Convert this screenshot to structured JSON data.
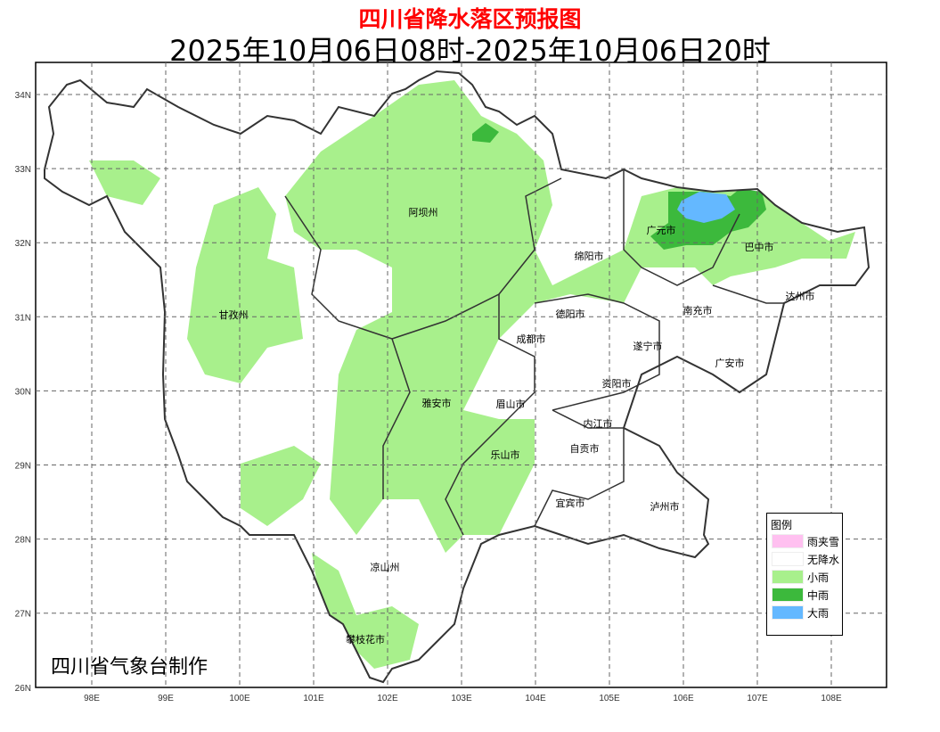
{
  "title": "四川省降水落区预报图",
  "subtitle": "2025年10月06日08时-2025年10月06日20时",
  "credit": "四川省气象台制作",
  "axes": {
    "x_ticks": [
      "98E",
      "99E",
      "100E",
      "101E",
      "102E",
      "103E",
      "104E",
      "105E",
      "106E",
      "107E",
      "108E"
    ],
    "y_ticks": [
      "34N",
      "33N",
      "32N",
      "31N",
      "30N",
      "29N",
      "28N",
      "27N",
      "26N"
    ]
  },
  "regions": [
    "阿坝州",
    "甘孜州",
    "绵阳市",
    "广元市",
    "巴中市",
    "达州市",
    "南充市",
    "德阳市",
    "成都市",
    "遂宁市",
    "广安市",
    "资阳市",
    "雅安市",
    "眉山市",
    "内江市",
    "自贡市",
    "乐山市",
    "宜宾市",
    "泸州市",
    "凉山州",
    "攀枝花市"
  ],
  "legend": {
    "title": "图例",
    "items": [
      {
        "label": "雨夹雪",
        "color": "#ffc0f0"
      },
      {
        "label": "无降水",
        "color": "#ffffff"
      },
      {
        "label": "小雨",
        "color": "#a8f08c"
      },
      {
        "label": "中雨",
        "color": "#3cb93c"
      },
      {
        "label": "大雨",
        "color": "#64b8ff"
      }
    ]
  }
}
